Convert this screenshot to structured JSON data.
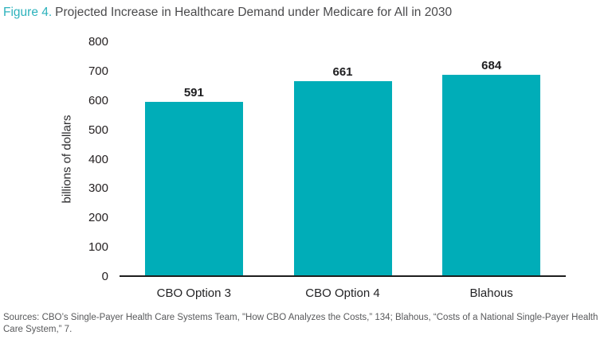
{
  "title": {
    "prefix": "Figure 4.",
    "text": "Projected Increase in Healthcare Demand under Medicare for All in 2030"
  },
  "colors": {
    "bar": "#00adb8",
    "title_accent": "#2cb2bc",
    "axis": "#1e1e1e",
    "sources_text": "#58595b"
  },
  "chart_data": {
    "type": "bar",
    "categories": [
      "CBO Option 3",
      "CBO Option 4",
      "Blahous"
    ],
    "values": [
      591,
      661,
      684
    ],
    "title": "Projected Increase in Healthcare Demand under Medicare for All in 2030",
    "xlabel": "",
    "ylabel": "billions of dollars",
    "ylim": [
      0,
      800
    ],
    "yticks": [
      800,
      700,
      600,
      500,
      400,
      300,
      200,
      100,
      0
    ],
    "grid": false,
    "legend": "none",
    "value_labels": true,
    "bar_color": "#00adb8"
  },
  "footer": {
    "lines": [
      "Sources: CBO’s Single-Payer Health Care Systems Team, \"How CBO Analyzes the Costs,” 134; Blahous, “Costs of a National Single-Payer Health",
      "Care System,” 7."
    ]
  }
}
